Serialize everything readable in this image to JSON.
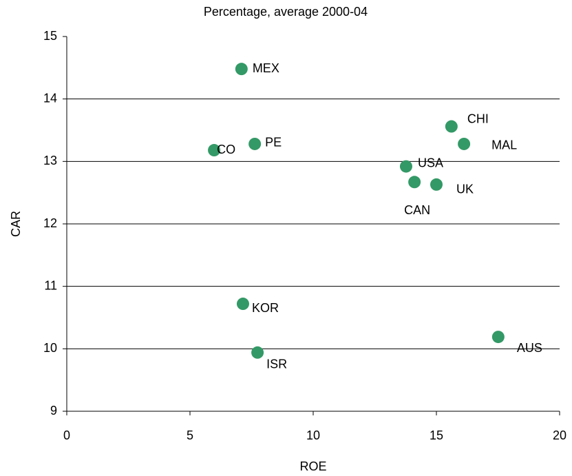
{
  "chart_data": {
    "type": "scatter",
    "title": "Percentage, average 2000-04",
    "x_label": "ROE",
    "y_label": "CAR",
    "series": [
      {
        "color": "#339966",
        "labels": [
          "MEX",
          "PE",
          "CO",
          "CHI",
          "MAL",
          "USA",
          "CAN",
          "UK",
          "KOR",
          "ISR",
          "AUS"
        ],
        "x": [
          7.09,
          7.63,
          5.98,
          15.61,
          16.12,
          13.77,
          14.11,
          15.0,
          7.15,
          7.74,
          17.51
        ],
        "values": [
          14.48,
          13.28,
          13.18,
          13.56,
          13.28,
          12.92,
          12.67,
          12.63,
          10.72,
          9.94,
          10.19
        ]
      }
    ],
    "xlim": [
      0,
      20
    ],
    "xticks": [
      0,
      5,
      10,
      15,
      20
    ],
    "ylim": [
      9,
      15
    ],
    "yticks": [
      9,
      10,
      11,
      12,
      13,
      14,
      15
    ],
    "grid": true
  }
}
